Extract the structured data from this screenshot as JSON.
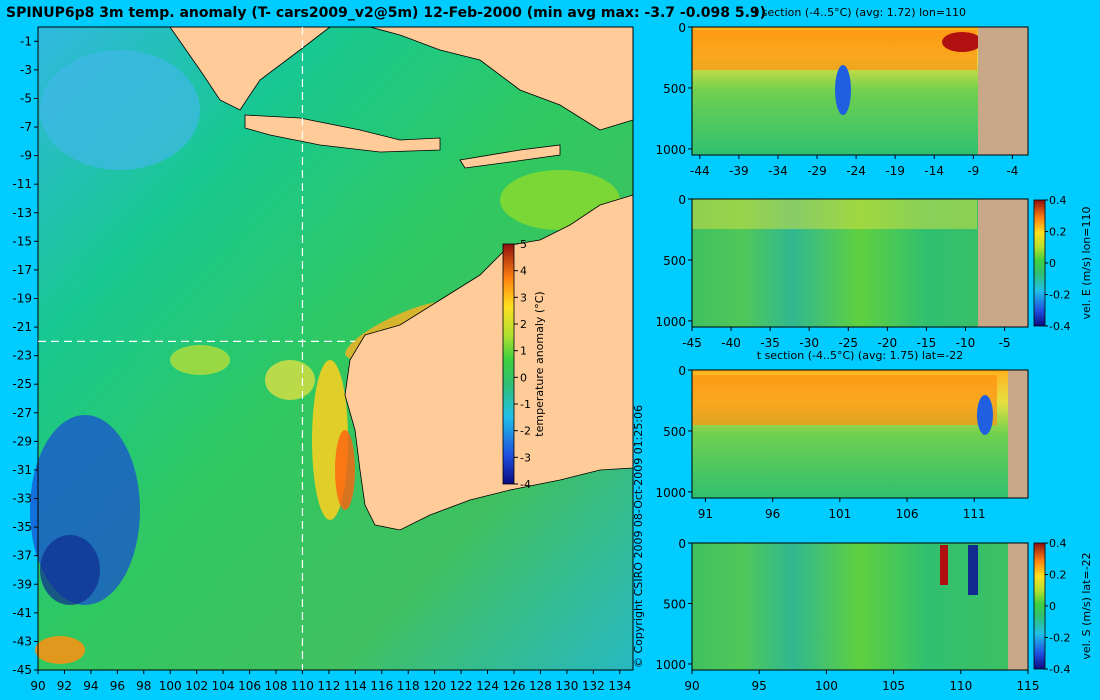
{
  "map": {
    "title": "SPINUP6p8 3m temp. anomaly (T- cars2009_v2@5m) 12-Feb-2000 (min avg max: -3.7 -0.098 5.9)",
    "lon_ticks": [
      "90",
      "92",
      "94",
      "96",
      "98",
      "100",
      "102",
      "104",
      "106",
      "108",
      "110",
      "112",
      "114",
      "116",
      "118",
      "120",
      "122",
      "124",
      "126",
      "128",
      "130",
      "132",
      "134"
    ],
    "lat_ticks": [
      "-1",
      "-3",
      "-5",
      "-7",
      "-9",
      "-11",
      "-13",
      "-15",
      "-17",
      "-19",
      "-21",
      "-23",
      "-25",
      "-27",
      "-29",
      "-31",
      "-33",
      "-35",
      "-37",
      "-39",
      "-41",
      "-43",
      "-45"
    ],
    "colorbar": {
      "label": "temperature anomaly (°C)",
      "ticks": [
        "5",
        "4",
        "3",
        "2",
        "1",
        "0",
        "-1",
        "-2",
        "-3",
        "-4"
      ]
    },
    "copyright": "© Copyright CSIRO 2009   08-Oct-2009 01:25:06",
    "crosshair": {
      "lon": 110,
      "lat": -22
    }
  },
  "panels": [
    {
      "title": "t section (-4..5°C) (avg: 1.72) lon=110",
      "x_ticks": [
        "-44",
        "-39",
        "-34",
        "-29",
        "-24",
        "-19",
        "-14",
        "-9",
        "-4"
      ],
      "y_ticks": [
        "0",
        "500",
        "1000"
      ]
    },
    {
      "title": "",
      "x_ticks": [
        "-45",
        "-40",
        "-35",
        "-30",
        "-25",
        "-20",
        "-15",
        "-10",
        "-5"
      ],
      "y_ticks": [
        "0",
        "500",
        "1000"
      ],
      "colorbar": {
        "label": "vel. E (m/s) lon=110",
        "ticks": [
          "0.4",
          "0.2",
          "0",
          "-0.2",
          "-0.4"
        ]
      }
    },
    {
      "title": "t section (-4..5°C) (avg: 1.75) lat=-22",
      "x_ticks": [
        "91",
        "96",
        "101",
        "106",
        "111"
      ],
      "y_ticks": [
        "0",
        "500",
        "1000"
      ]
    },
    {
      "title": "",
      "x_ticks": [
        "90",
        "95",
        "100",
        "105",
        "110",
        "115"
      ],
      "y_ticks": [
        "0",
        "500",
        "1000"
      ],
      "colorbar": {
        "label": "vel. S (m/s) lat=-22",
        "ticks": [
          "0.4",
          "0.2",
          "0",
          "-0.2",
          "-0.4"
        ]
      }
    }
  ],
  "chart_data": {
    "type": "heatmap",
    "title": "SPINUP6p8 3m temp. anomaly (T- cars2009_v2@5m) 12-Feb-2000 (min avg max: -3.7 -0.098 5.9)",
    "xlabel": "",
    "ylabel": "",
    "xlim": [
      90,
      135
    ],
    "ylim": [
      -45,
      0
    ],
    "value_range": [
      -4,
      5
    ],
    "stats": {
      "min": -3.7,
      "avg": -0.098,
      "max": 5.9
    },
    "sections": [
      {
        "title": "t section (-4..5°C) (avg: 1.72) lon=110",
        "xlim": [
          -45,
          -2
        ],
        "ylim": [
          0,
          1050
        ],
        "value_range": [
          -4,
          5
        ]
      },
      {
        "title": "",
        "xlim": [
          -45,
          -2
        ],
        "ylim": [
          0,
          1050
        ],
        "value_range": [
          -0.4,
          0.4
        ]
      },
      {
        "title": "t section (-4..5°C) (avg: 1.75) lat=-22",
        "xlim": [
          90,
          115
        ],
        "ylim": [
          0,
          1050
        ],
        "value_range": [
          -4,
          5
        ]
      },
      {
        "title": "",
        "xlim": [
          90,
          115
        ],
        "ylim": [
          0,
          1050
        ],
        "value_range": [
          -0.4,
          0.4
        ]
      }
    ]
  }
}
